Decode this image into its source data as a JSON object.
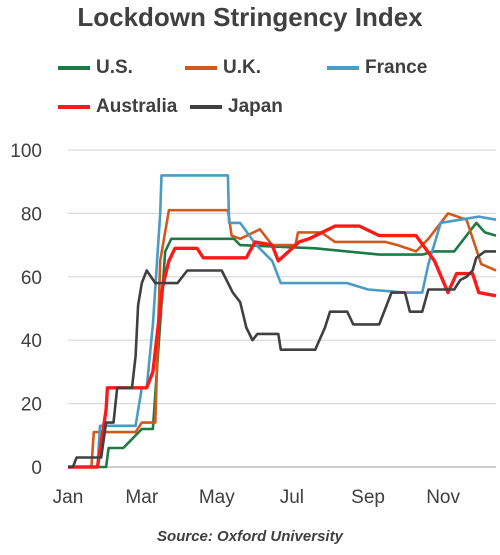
{
  "colors": {
    "us": "#1e7a45",
    "uk": "#d05a1e",
    "france": "#4a9cc4",
    "australia": "#ff1a1a",
    "japan": "#404040",
    "grid": "#d9d9d9",
    "text": "#404040"
  },
  "chart_data": {
    "type": "line",
    "title": "Lockdown Stringency Index",
    "source": "Source: Oxford University",
    "xlabel": "",
    "ylabel": "",
    "xlim": [
      "2020-01-01",
      "2020-12-14"
    ],
    "ylim": [
      0,
      100
    ],
    "yticks": [
      "0",
      "20",
      "40",
      "60",
      "80",
      "100"
    ],
    "xticks": [
      {
        "label": "Jan",
        "date": "2020-01-01"
      },
      {
        "label": "Mar",
        "date": "2020-03-01"
      },
      {
        "label": "May",
        "date": "2020-05-01"
      },
      {
        "label": "Jul",
        "date": "2020-07-01"
      },
      {
        "label": "Sep",
        "date": "2020-09-01"
      },
      {
        "label": "Nov",
        "date": "2020-11-01"
      }
    ],
    "grid": true,
    "legend_position": "top",
    "series": [
      {
        "name": "U.S.",
        "color_key": "us",
        "points": [
          [
            "2020-01-01",
            0
          ],
          [
            "2020-02-01",
            0
          ],
          [
            "2020-02-03",
            6
          ],
          [
            "2020-02-15",
            6
          ],
          [
            "2020-03-01",
            12
          ],
          [
            "2020-03-10",
            12
          ],
          [
            "2020-03-15",
            40
          ],
          [
            "2020-03-20",
            68
          ],
          [
            "2020-03-25",
            72
          ],
          [
            "2020-04-20",
            72
          ],
          [
            "2020-05-15",
            72
          ],
          [
            "2020-05-20",
            70
          ],
          [
            "2020-07-20",
            69
          ],
          [
            "2020-08-15",
            68
          ],
          [
            "2020-09-10",
            67
          ],
          [
            "2020-10-15",
            67
          ],
          [
            "2020-10-25",
            68
          ],
          [
            "2020-11-10",
            68
          ],
          [
            "2020-11-20",
            73
          ],
          [
            "2020-11-28",
            77
          ],
          [
            "2020-12-05",
            74
          ],
          [
            "2020-12-14",
            73
          ]
        ]
      },
      {
        "name": "U.K.",
        "color_key": "uk",
        "points": [
          [
            "2020-01-01",
            0
          ],
          [
            "2020-01-20",
            0
          ],
          [
            "2020-01-22",
            11
          ],
          [
            "2020-02-10",
            11
          ],
          [
            "2020-02-25",
            11
          ],
          [
            "2020-03-01",
            14
          ],
          [
            "2020-03-12",
            14
          ],
          [
            "2020-03-16",
            65
          ],
          [
            "2020-03-23",
            81
          ],
          [
            "2020-05-10",
            81
          ],
          [
            "2020-05-13",
            73
          ],
          [
            "2020-05-20",
            72
          ],
          [
            "2020-06-05",
            75
          ],
          [
            "2020-06-15",
            70
          ],
          [
            "2020-07-04",
            70
          ],
          [
            "2020-07-06",
            74
          ],
          [
            "2020-07-25",
            74
          ],
          [
            "2020-08-05",
            71
          ],
          [
            "2020-09-15",
            71
          ],
          [
            "2020-09-25",
            70
          ],
          [
            "2020-10-10",
            68
          ],
          [
            "2020-10-20",
            72
          ],
          [
            "2020-11-05",
            80
          ],
          [
            "2020-11-20",
            78
          ],
          [
            "2020-12-02",
            64
          ],
          [
            "2020-12-14",
            62
          ]
        ]
      },
      {
        "name": "France",
        "color_key": "france",
        "points": [
          [
            "2020-01-01",
            0
          ],
          [
            "2020-01-25",
            0
          ],
          [
            "2020-01-27",
            13
          ],
          [
            "2020-02-25",
            13
          ],
          [
            "2020-03-01",
            25
          ],
          [
            "2020-03-05",
            25
          ],
          [
            "2020-03-10",
            45
          ],
          [
            "2020-03-16",
            80
          ],
          [
            "2020-03-17",
            92
          ],
          [
            "2020-05-10",
            92
          ],
          [
            "2020-05-11",
            77
          ],
          [
            "2020-05-20",
            77
          ],
          [
            "2020-06-02",
            70
          ],
          [
            "2020-06-15",
            65
          ],
          [
            "2020-06-22",
            58
          ],
          [
            "2020-08-15",
            58
          ],
          [
            "2020-09-01",
            56
          ],
          [
            "2020-10-01",
            55
          ],
          [
            "2020-10-15",
            55
          ],
          [
            "2020-10-20",
            64
          ],
          [
            "2020-10-30",
            77
          ],
          [
            "2020-11-15",
            78
          ],
          [
            "2020-11-30",
            79
          ],
          [
            "2020-12-14",
            78
          ]
        ]
      },
      {
        "name": "Australia",
        "color_key": "australia",
        "points": [
          [
            "2020-01-01",
            0
          ],
          [
            "2020-01-25",
            0
          ],
          [
            "2020-02-01",
            18
          ],
          [
            "2020-02-02",
            25
          ],
          [
            "2020-03-05",
            25
          ],
          [
            "2020-03-10",
            30
          ],
          [
            "2020-03-18",
            57
          ],
          [
            "2020-03-23",
            65
          ],
          [
            "2020-03-28",
            69
          ],
          [
            "2020-04-15",
            69
          ],
          [
            "2020-04-20",
            66
          ],
          [
            "2020-05-25",
            66
          ],
          [
            "2020-06-01",
            71
          ],
          [
            "2020-06-15",
            70
          ],
          [
            "2020-06-20",
            65
          ],
          [
            "2020-07-07",
            71
          ],
          [
            "2020-07-15",
            72
          ],
          [
            "2020-08-05",
            76
          ],
          [
            "2020-08-25",
            76
          ],
          [
            "2020-09-10",
            73
          ],
          [
            "2020-10-10",
            73
          ],
          [
            "2020-10-25",
            65
          ],
          [
            "2020-11-05",
            55
          ],
          [
            "2020-11-12",
            61
          ],
          [
            "2020-11-25",
            61
          ],
          [
            "2020-11-30",
            55
          ],
          [
            "2020-12-14",
            54
          ]
        ]
      },
      {
        "name": "Japan",
        "color_key": "japan",
        "points": [
          [
            "2020-01-01",
            0
          ],
          [
            "2020-01-05",
            0
          ],
          [
            "2020-01-08",
            3
          ],
          [
            "2020-01-28",
            3
          ],
          [
            "2020-02-01",
            14
          ],
          [
            "2020-02-07",
            14
          ],
          [
            "2020-02-10",
            25
          ],
          [
            "2020-02-22",
            25
          ],
          [
            "2020-02-25",
            35
          ],
          [
            "2020-02-27",
            51
          ],
          [
            "2020-03-01",
            58
          ],
          [
            "2020-03-05",
            62
          ],
          [
            "2020-03-12",
            58
          ],
          [
            "2020-03-30",
            58
          ],
          [
            "2020-04-07",
            62
          ],
          [
            "2020-05-05",
            62
          ],
          [
            "2020-05-14",
            55
          ],
          [
            "2020-05-20",
            52
          ],
          [
            "2020-05-25",
            44
          ],
          [
            "2020-05-30",
            40
          ],
          [
            "2020-06-03",
            42
          ],
          [
            "2020-06-20",
            42
          ],
          [
            "2020-06-22",
            37
          ],
          [
            "2020-07-20",
            37
          ],
          [
            "2020-07-28",
            44
          ],
          [
            "2020-08-01",
            49
          ],
          [
            "2020-08-15",
            49
          ],
          [
            "2020-08-20",
            45
          ],
          [
            "2020-09-10",
            45
          ],
          [
            "2020-09-20",
            55
          ],
          [
            "2020-10-01",
            55
          ],
          [
            "2020-10-05",
            49
          ],
          [
            "2020-10-15",
            49
          ],
          [
            "2020-10-20",
            56
          ],
          [
            "2020-11-10",
            56
          ],
          [
            "2020-11-15",
            59
          ],
          [
            "2020-11-20",
            60
          ],
          [
            "2020-11-25",
            62
          ],
          [
            "2020-11-28",
            66
          ],
          [
            "2020-12-05",
            68
          ],
          [
            "2020-12-14",
            68
          ]
        ]
      }
    ]
  }
}
